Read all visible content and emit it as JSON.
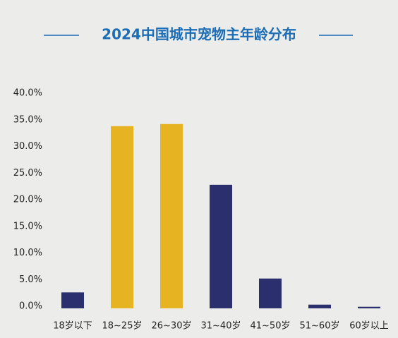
{
  "chart_data": {
    "type": "bar",
    "title": "2024中国城市宠物主年龄分布",
    "categories": [
      "18岁以下",
      "18~25岁",
      "26~30岁",
      "31~40岁",
      "41~50岁",
      "51~60岁",
      "60岁以上"
    ],
    "values": [
      3.0,
      34.2,
      34.6,
      23.2,
      5.6,
      0.7,
      0.3
    ],
    "colors": [
      "#2c2f6d",
      "#e6b322",
      "#e6b322",
      "#2c2f6d",
      "#2c2f6d",
      "#2c2f6d",
      "#2c2f6d"
    ],
    "ylim": [
      0,
      40
    ],
    "yticks": [
      {
        "value": 0,
        "label": "0.0%"
      },
      {
        "value": 5,
        "label": "5.0%"
      },
      {
        "value": 10,
        "label": "10.0%"
      },
      {
        "value": 15,
        "label": "15.0%"
      },
      {
        "value": 20,
        "label": "20.0%"
      },
      {
        "value": 25,
        "label": "25.0%"
      },
      {
        "value": 30,
        "label": "30.0%"
      },
      {
        "value": 35,
        "label": "35.0%"
      },
      {
        "value": 40,
        "label": "40.0%"
      }
    ],
    "grid": false
  }
}
